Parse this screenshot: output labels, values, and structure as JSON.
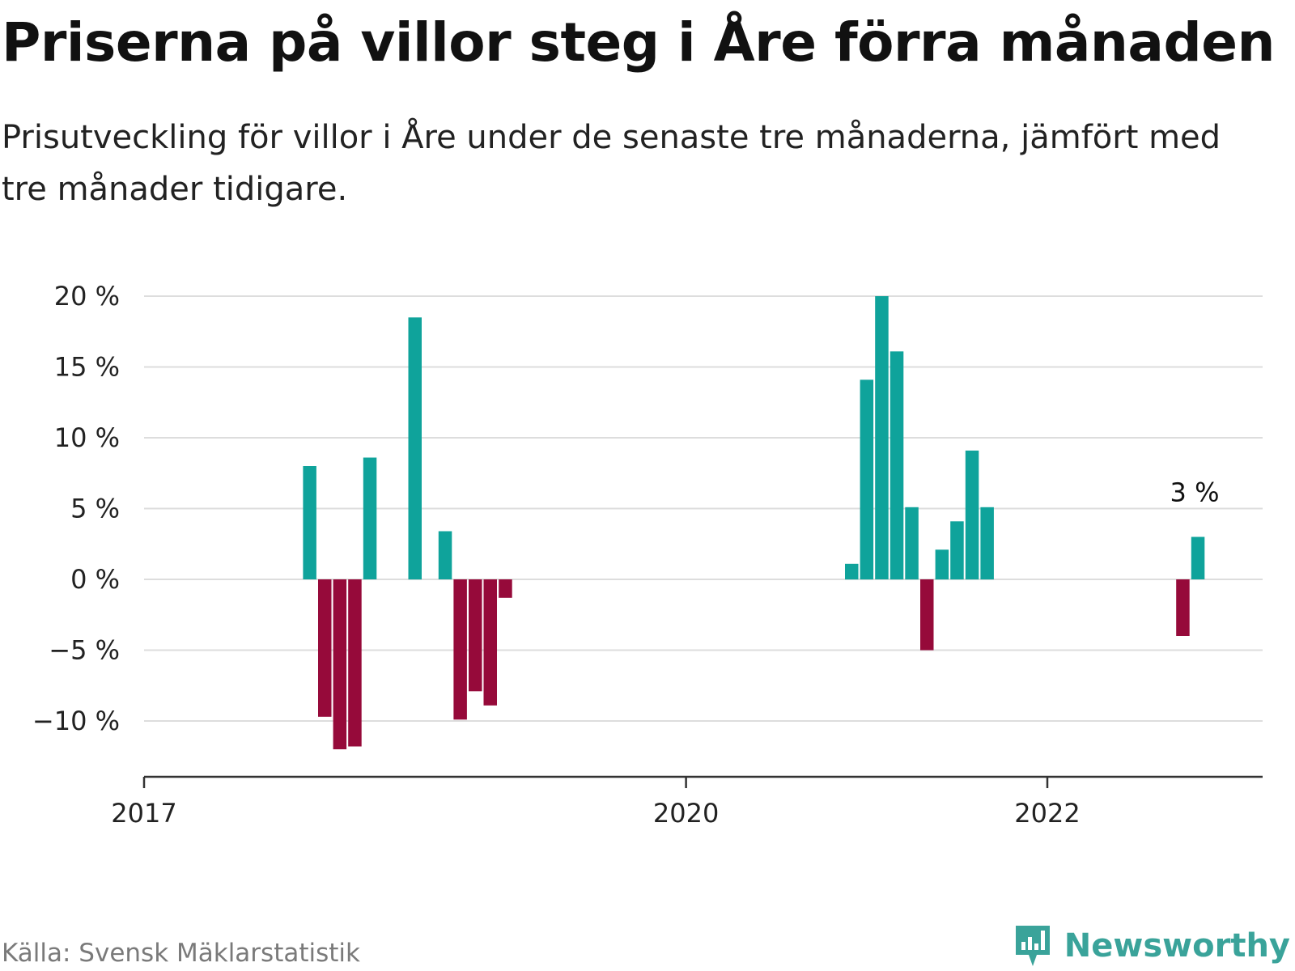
{
  "title": "Priserna på villor steg i Åre förra månaden",
  "subtitle": "Prisutveckling för villor i Åre under de senaste tre månaderna, jämfört med tre månader tidigare.",
  "source": "Källa: Svensk Mäklarstatistik",
  "brand": {
    "name": "Newsworthy",
    "icon": "newsworthy-logo-icon",
    "color": "#3aa39a"
  },
  "colors": {
    "positive": "#0fa39b",
    "negative": "#960a3a",
    "grid": "#dddddd",
    "axis": "#333333"
  },
  "chart_data": {
    "type": "bar",
    "title": "Priserna på villor steg i Åre förra månaden",
    "xlabel": "",
    "ylabel": "",
    "x_ticks": [
      {
        "date": "2017-01",
        "label": "2017"
      },
      {
        "date": "2020-01",
        "label": "2020"
      },
      {
        "date": "2022-01",
        "label": "2022"
      }
    ],
    "y_ticks": [
      {
        "value": 20,
        "label": "20 %"
      },
      {
        "value": 15,
        "label": "15 %"
      },
      {
        "value": 10,
        "label": "10 %"
      },
      {
        "value": 5,
        "label": "5 %"
      },
      {
        "value": 0,
        "label": "0 %"
      },
      {
        "value": -5,
        "label": "−5 %"
      },
      {
        "value": -10,
        "label": "−10 %"
      }
    ],
    "ylim": [
      -14,
      20
    ],
    "xlim": [
      "2017-01",
      "2023-03"
    ],
    "grid": true,
    "series": [
      {
        "points": [
          {
            "date": "2017-12",
            "value": 8
          },
          {
            "date": "2018-01",
            "value": -9.7
          },
          {
            "date": "2018-02",
            "value": -12
          },
          {
            "date": "2018-03",
            "value": -11.8
          },
          {
            "date": "2018-04",
            "value": 8.6
          },
          {
            "date": "2018-07",
            "value": 18.5
          },
          {
            "date": "2018-09",
            "value": 3.4
          },
          {
            "date": "2018-10",
            "value": -9.9
          },
          {
            "date": "2018-11",
            "value": -7.9
          },
          {
            "date": "2018-12",
            "value": -8.9
          },
          {
            "date": "2019-01",
            "value": -1.3
          },
          {
            "date": "2020-12",
            "value": 1.1
          },
          {
            "date": "2021-01",
            "value": 14.1
          },
          {
            "date": "2021-02",
            "value": 20
          },
          {
            "date": "2021-03",
            "value": 16.1
          },
          {
            "date": "2021-04",
            "value": 5.1
          },
          {
            "date": "2021-05",
            "value": -5
          },
          {
            "date": "2021-06",
            "value": 2.1
          },
          {
            "date": "2021-07",
            "value": 4.1
          },
          {
            "date": "2021-08",
            "value": 9.1
          },
          {
            "date": "2021-09",
            "value": 5.1
          },
          {
            "date": "2022-10",
            "value": -4
          },
          {
            "date": "2022-11",
            "value": 3
          }
        ]
      }
    ],
    "annotations": [
      {
        "date": "2022-11",
        "text": "3 %"
      }
    ]
  }
}
